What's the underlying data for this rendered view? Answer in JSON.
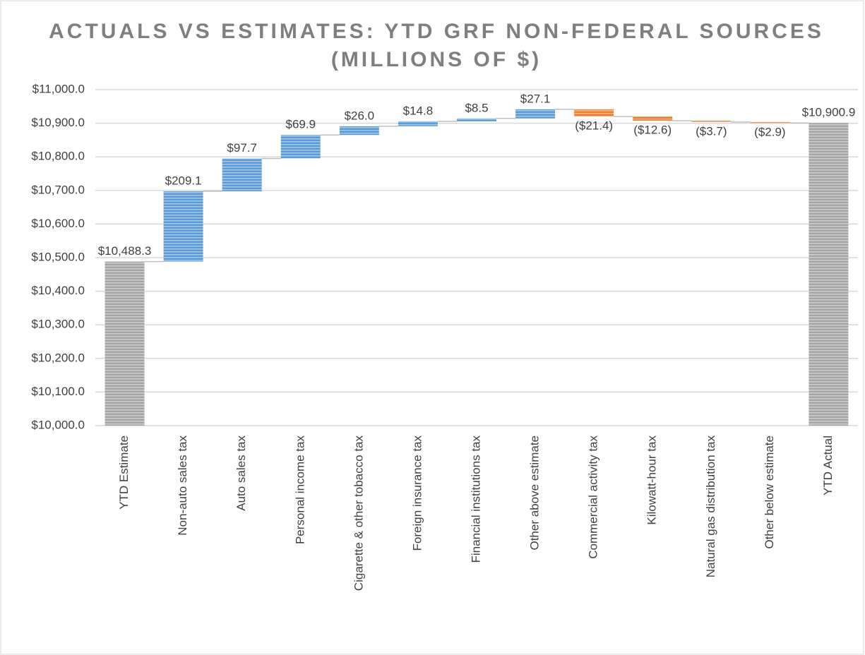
{
  "chart_data": {
    "type": "waterfall",
    "title": [
      "ACTUALS VS ESTIMATES: YTD GRF NON-FEDERAL SOURCES",
      "(MILLIONS OF $)"
    ],
    "categories": [
      "YTD Estimate",
      "Non-auto sales tax",
      "Auto sales tax",
      "Personal income tax",
      "Cigarette & other tobacco tax",
      "Foreign insurance tax",
      "Financial institutions tax",
      "Other above estimate",
      "Commercial activity tax",
      "Kilowatt-hour tax",
      "Natural gas distribution tax",
      "Other below estimate",
      "YTD Actual"
    ],
    "values": [
      10488.3,
      209.1,
      97.7,
      69.9,
      26.0,
      14.8,
      8.5,
      27.1,
      -21.4,
      -12.6,
      -3.7,
      -2.9,
      10900.9
    ],
    "value_labels": [
      "$10,488.3",
      "$209.1",
      "$97.7",
      "$69.9",
      "$26.0",
      "$14.8",
      "$8.5",
      "$27.1",
      "($21.4)",
      "($12.6)",
      "($3.7)",
      "($2.9)",
      "$10,900.9"
    ],
    "measure": [
      "total",
      "relative",
      "relative",
      "relative",
      "relative",
      "relative",
      "relative",
      "relative",
      "relative",
      "relative",
      "relative",
      "relative",
      "total"
    ],
    "colors": {
      "total": "#a5a5a5",
      "increase": "#5b9bd5",
      "decrease": "#ed7d31"
    },
    "ylim": [
      10000,
      11000
    ],
    "yticks": [
      {
        "value": 10000,
        "label": "$10,000.0"
      },
      {
        "value": 10100,
        "label": "$10,100.0"
      },
      {
        "value": 10200,
        "label": "$10,200.0"
      },
      {
        "value": 10300,
        "label": "$10,300.0"
      },
      {
        "value": 10400,
        "label": "$10,400.0"
      },
      {
        "value": 10500,
        "label": "$10,500.0"
      },
      {
        "value": 10600,
        "label": "$10,600.0"
      },
      {
        "value": 10700,
        "label": "$10,700.0"
      },
      {
        "value": 10800,
        "label": "$10,800.0"
      },
      {
        "value": 10900,
        "label": "$10,900.0"
      },
      {
        "value": 11000,
        "label": "$11,000.0"
      }
    ],
    "grid": true
  }
}
